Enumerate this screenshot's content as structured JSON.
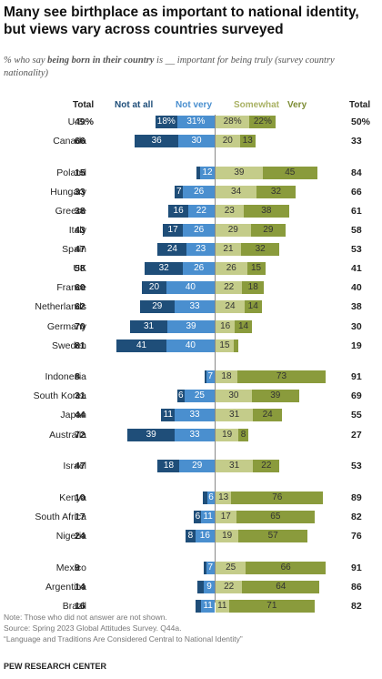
{
  "title": "Many see birthplace as important to national identity, but views vary across countries surveyed",
  "subtitle_pre": "% who say ",
  "subtitle_bold": "being born in their country",
  "subtitle_post": " is __ important for being truly (survey country nationality)",
  "headers": {
    "total_left": "Total",
    "not_at_all": "Not at all",
    "not_very": "Not very",
    "somewhat": "Somewhat",
    "very": "Very",
    "total_right": "Total"
  },
  "colors": {
    "not_at_all": "#1f4e79",
    "not_very": "#4a8fcf",
    "somewhat": "#c4cc8a",
    "very": "#8a9b3c",
    "not_at_all_text": "#1f4e79",
    "not_very_text": "#4a8fcf",
    "somewhat_text": "#a9b163",
    "very_text": "#7d8c34"
  },
  "chart_data": {
    "type": "bar",
    "stacking": "diverging",
    "series_order": [
      "not_at_all",
      "not_very",
      "somewhat",
      "very"
    ],
    "rows": [
      {
        "country": "U.S.",
        "total_left": "49%",
        "not_at_all": 18,
        "not_very": 31,
        "somewhat": 28,
        "very": 22,
        "total_right": "50%",
        "lbl": [
          "18%",
          "31%",
          "28%",
          "22%"
        ],
        "group": 0
      },
      {
        "country": "Canada",
        "total_left": "66",
        "not_at_all": 36,
        "not_very": 30,
        "somewhat": 20,
        "very": 13,
        "total_right": "33",
        "lbl": [
          "36",
          "30",
          "20",
          "13"
        ],
        "group": 0
      },
      {
        "country": "Poland",
        "total_left": "15",
        "not_at_all": 3,
        "not_very": 12,
        "somewhat": 39,
        "very": 45,
        "total_right": "84",
        "lbl": [
          "",
          "12",
          "39",
          "45"
        ],
        "group": 1
      },
      {
        "country": "Hungary",
        "total_left": "33",
        "not_at_all": 7,
        "not_very": 26,
        "somewhat": 34,
        "very": 32,
        "total_right": "66",
        "lbl": [
          "7",
          "26",
          "34",
          "32"
        ],
        "group": 1
      },
      {
        "country": "Greece",
        "total_left": "38",
        "not_at_all": 16,
        "not_very": 22,
        "somewhat": 23,
        "very": 38,
        "total_right": "61",
        "lbl": [
          "16",
          "22",
          "23",
          "38"
        ],
        "group": 1
      },
      {
        "country": "Italy",
        "total_left": "43",
        "not_at_all": 17,
        "not_very": 26,
        "somewhat": 29,
        "very": 29,
        "total_right": "58",
        "lbl": [
          "17",
          "26",
          "29",
          "29"
        ],
        "group": 1
      },
      {
        "country": "Spain",
        "total_left": "47",
        "not_at_all": 24,
        "not_very": 23,
        "somewhat": 21,
        "very": 32,
        "total_right": "53",
        "lbl": [
          "24",
          "23",
          "21",
          "32"
        ],
        "group": 1
      },
      {
        "country": "UK",
        "total_left": "58",
        "not_at_all": 32,
        "not_very": 26,
        "somewhat": 26,
        "very": 15,
        "total_right": "41",
        "lbl": [
          "32",
          "26",
          "26",
          "15"
        ],
        "group": 1
      },
      {
        "country": "France",
        "total_left": "60",
        "not_at_all": 20,
        "not_very": 40,
        "somewhat": 22,
        "very": 18,
        "total_right": "40",
        "lbl": [
          "20",
          "40",
          "22",
          "18"
        ],
        "group": 1
      },
      {
        "country": "Netherlands",
        "total_left": "62",
        "not_at_all": 29,
        "not_very": 33,
        "somewhat": 24,
        "very": 14,
        "total_right": "38",
        "lbl": [
          "29",
          "33",
          "24",
          "14"
        ],
        "group": 1
      },
      {
        "country": "Germany",
        "total_left": "70",
        "not_at_all": 31,
        "not_very": 39,
        "somewhat": 16,
        "very": 14,
        "total_right": "30",
        "lbl": [
          "31",
          "39",
          "16",
          "14"
        ],
        "group": 1
      },
      {
        "country": "Sweden",
        "total_left": "81",
        "not_at_all": 41,
        "not_very": 40,
        "somewhat": 15,
        "very": 4,
        "total_right": "19",
        "lbl": [
          "41",
          "40",
          "15",
          ""
        ],
        "group": 1
      },
      {
        "country": "Indonesia",
        "total_left": "8",
        "not_at_all": 1,
        "not_very": 7,
        "somewhat": 18,
        "very": 73,
        "total_right": "91",
        "lbl": [
          "",
          "7",
          "18",
          "73"
        ],
        "group": 2
      },
      {
        "country": "South Korea",
        "total_left": "31",
        "not_at_all": 6,
        "not_very": 25,
        "somewhat": 30,
        "very": 39,
        "total_right": "69",
        "lbl": [
          "6",
          "25",
          "30",
          "39"
        ],
        "group": 2
      },
      {
        "country": "Japan",
        "total_left": "44",
        "not_at_all": 11,
        "not_very": 33,
        "somewhat": 31,
        "very": 24,
        "total_right": "55",
        "lbl": [
          "11",
          "33",
          "31",
          "24"
        ],
        "group": 2
      },
      {
        "country": "Australia",
        "total_left": "72",
        "not_at_all": 39,
        "not_very": 33,
        "somewhat": 19,
        "very": 8,
        "total_right": "27",
        "lbl": [
          "39",
          "33",
          "19",
          "8"
        ],
        "group": 2
      },
      {
        "country": "Israel",
        "total_left": "47",
        "not_at_all": 18,
        "not_very": 29,
        "somewhat": 31,
        "very": 22,
        "total_right": "53",
        "lbl": [
          "18",
          "29",
          "31",
          "22"
        ],
        "group": 3
      },
      {
        "country": "Kenya",
        "total_left": "10",
        "not_at_all": 4,
        "not_very": 6,
        "somewhat": 13,
        "very": 76,
        "total_right": "89",
        "lbl": [
          "",
          "6",
          "13",
          "76"
        ],
        "group": 4
      },
      {
        "country": "South Africa",
        "total_left": "17",
        "not_at_all": 6,
        "not_very": 11,
        "somewhat": 17,
        "very": 65,
        "total_right": "82",
        "lbl": [
          "6",
          "11",
          "17",
          "65"
        ],
        "group": 4
      },
      {
        "country": "Nigeria",
        "total_left": "24",
        "not_at_all": 8,
        "not_very": 16,
        "somewhat": 19,
        "very": 57,
        "total_right": "76",
        "lbl": [
          "8",
          "16",
          "19",
          "57"
        ],
        "group": 4
      },
      {
        "country": "Mexico",
        "total_left": "9",
        "not_at_all": 2,
        "not_very": 7,
        "somewhat": 25,
        "very": 66,
        "total_right": "91",
        "lbl": [
          "",
          "7",
          "25",
          "66"
        ],
        "group": 5
      },
      {
        "country": "Argentina",
        "total_left": "14",
        "not_at_all": 5,
        "not_very": 9,
        "somewhat": 22,
        "very": 64,
        "total_right": "86",
        "lbl": [
          "",
          "9",
          "22",
          "64"
        ],
        "group": 5
      },
      {
        "country": "Brazil",
        "total_left": "16",
        "not_at_all": 5,
        "not_very": 11,
        "somewhat": 11,
        "very": 71,
        "total_right": "82",
        "lbl": [
          "",
          "11",
          "11",
          "71"
        ],
        "group": 5
      }
    ]
  },
  "footer": {
    "note": "Note: Those who did not answer are not shown.",
    "source": "Source: Spring 2023 Global Attitudes Survey. Q44a.",
    "report": "“Language and Traditions Are Considered Central to National Identity”",
    "brand": "PEW RESEARCH CENTER"
  }
}
